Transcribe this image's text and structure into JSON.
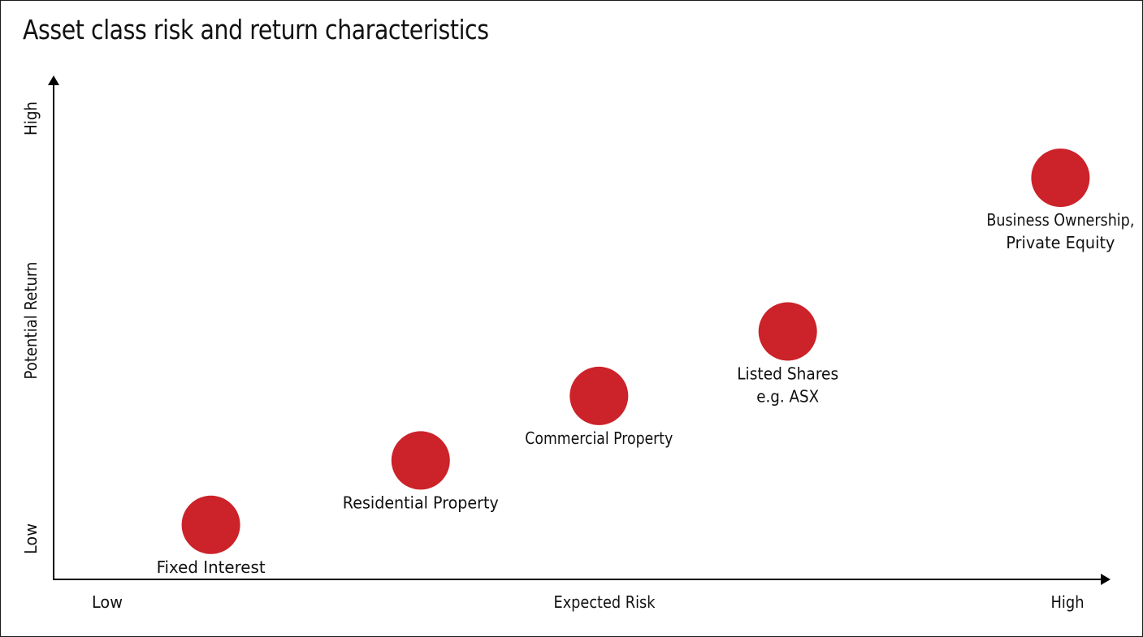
{
  "title": "Asset class risk and return characteristics",
  "colors": {
    "point": "#cc2229",
    "axis": "#000000",
    "text": "#111111"
  },
  "chart_data": {
    "type": "scatter",
    "title": "Asset class risk and return characteristics",
    "xlabel": "Expected Risk",
    "ylabel": "Potential Return",
    "x_tick_labels": [
      "Low",
      "High"
    ],
    "y_tick_labels": [
      "Low",
      "High"
    ],
    "xlim": [
      0,
      100
    ],
    "ylim": [
      0,
      100
    ],
    "grid": false,
    "legend": "none",
    "points": [
      {
        "label": [
          "Fixed Interest"
        ],
        "x": 15,
        "y": 11
      },
      {
        "label": [
          "Residential Property"
        ],
        "x": 35,
        "y": 24
      },
      {
        "label": [
          "Commercial Property"
        ],
        "x": 52,
        "y": 37
      },
      {
        "label": [
          "Listed Shares",
          "e.g. ASX"
        ],
        "x": 70,
        "y": 50
      },
      {
        "label": [
          "Business Ownership,",
          "Private Equity"
        ],
        "x": 96,
        "y": 81
      }
    ]
  }
}
